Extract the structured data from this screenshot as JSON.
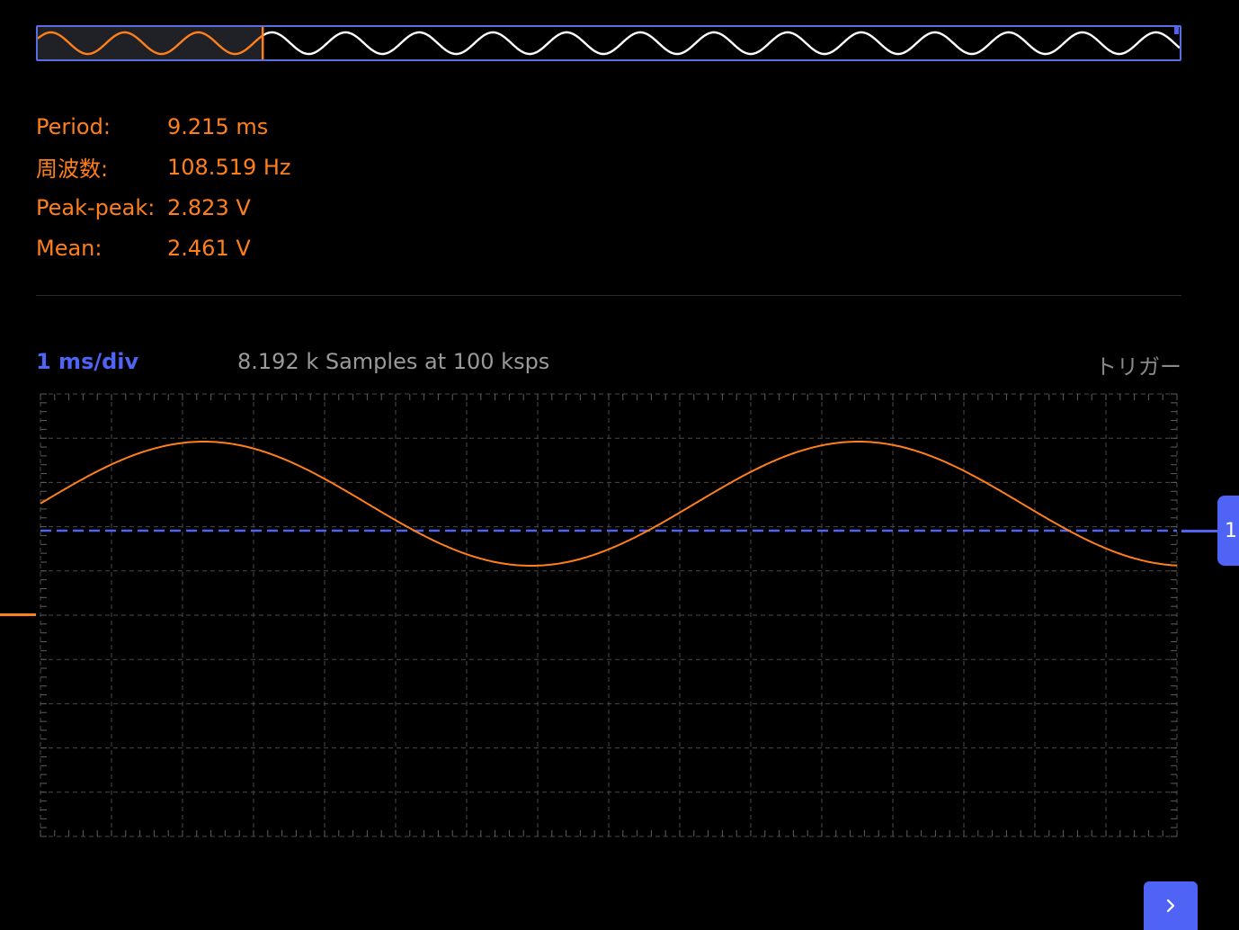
{
  "measurements": [
    {
      "label": "Period:",
      "value": "9.215 ms"
    },
    {
      "label": "周波数:",
      "value": "108.519 Hz"
    },
    {
      "label": "Peak-peak:",
      "value": "2.823 V"
    },
    {
      "label": "Mean:",
      "value": "2.461 V"
    }
  ],
  "scope": {
    "timebase": "1 ms/div",
    "samples": "8.192 k Samples at 100 ksps",
    "trigger_label": "トリガー",
    "trigger_handle_glyph": "1"
  },
  "overview": {
    "view_fraction": 0.197,
    "cycles": 15.5
  },
  "grid": {
    "divisions_x": 16,
    "divisions_y": 10
  },
  "trace": {
    "period_ms": 9.215,
    "peak_peak_v": 2.823,
    "mean_v": 2.461,
    "time_span_ms": 16
  },
  "colors": {
    "trace": "#ff7f1a",
    "accent": "#4f63f5",
    "grid": "#4a4a4a",
    "overview_trace": "#ffffff"
  },
  "icons": {
    "next": "chevron-right-icon"
  }
}
